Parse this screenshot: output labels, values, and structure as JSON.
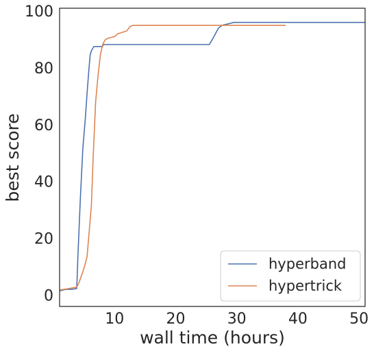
{
  "chart_data": {
    "type": "line",
    "title": "",
    "xlabel": "wall time (hours)",
    "ylabel": "best score",
    "xlim": [
      1,
      51
    ],
    "ylim": [
      -4,
      101
    ],
    "xticks": [
      10,
      20,
      30,
      40,
      50
    ],
    "yticks": [
      0,
      20,
      40,
      60,
      80,
      100
    ],
    "grid": false,
    "legend_position": "bottom-right",
    "series": [
      {
        "name": "hyperband",
        "color": "#4c72b0",
        "points": [
          [
            1.0,
            1.5
          ],
          [
            2.0,
            2.0
          ],
          [
            3.0,
            2.0
          ],
          [
            3.8,
            2.3
          ],
          [
            4.0,
            14.0
          ],
          [
            4.4,
            34.0
          ],
          [
            4.8,
            51.5
          ],
          [
            5.2,
            62.0
          ],
          [
            5.5,
            71.0
          ],
          [
            5.8,
            79.5
          ],
          [
            6.0,
            84.5
          ],
          [
            6.2,
            86.0
          ],
          [
            6.6,
            87.5
          ],
          [
            8.0,
            87.5
          ],
          [
            8.2,
            88.2
          ],
          [
            25.5,
            88.2
          ],
          [
            26.0,
            90.0
          ],
          [
            26.5,
            92.0
          ],
          [
            27.0,
            94.0
          ],
          [
            27.6,
            95.0
          ],
          [
            28.6,
            95.5
          ],
          [
            29.5,
            96.0
          ],
          [
            51.0,
            96.0
          ]
        ]
      },
      {
        "name": "hypertrick",
        "color": "#dd8452",
        "points": [
          [
            1.0,
            1.8
          ],
          [
            2.5,
            2.3
          ],
          [
            3.8,
            2.8
          ],
          [
            4.2,
            4.5
          ],
          [
            5.0,
            9.5
          ],
          [
            5.5,
            13.5
          ],
          [
            6.2,
            31.5
          ],
          [
            6.5,
            49.0
          ],
          [
            6.9,
            68.0
          ],
          [
            7.3,
            77.5
          ],
          [
            7.7,
            85.0
          ],
          [
            8.1,
            88.5
          ],
          [
            8.5,
            90.0
          ],
          [
            9.0,
            90.5
          ],
          [
            10.0,
            91.0
          ],
          [
            10.5,
            92.0
          ],
          [
            12.0,
            93.0
          ],
          [
            12.5,
            94.5
          ],
          [
            13.0,
            95.0
          ],
          [
            38.0,
            95.0
          ]
        ]
      }
    ]
  }
}
